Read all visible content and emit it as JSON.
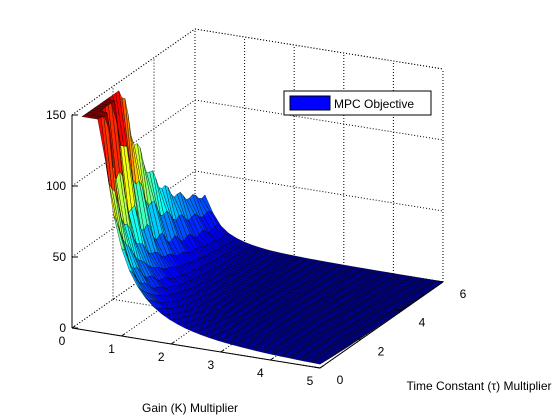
{
  "chart_data": {
    "type": "surface",
    "title": "",
    "xlabel": "Gain (K) Multiplier",
    "ylabel": "Time Constant (τ) Multiplier",
    "zlabel": "",
    "xlim": [
      0,
      5
    ],
    "ylim": [
      0,
      6
    ],
    "zlim": [
      0,
      150
    ],
    "x_ticks": [
      "0",
      "1",
      "2",
      "3",
      "4",
      "5"
    ],
    "y_ticks": [
      "0",
      "2",
      "4",
      "6"
    ],
    "z_ticks": [
      "0",
      "50",
      "100",
      "150"
    ],
    "grid": true,
    "legend": {
      "entries": [
        "MPC Objective"
      ],
      "placement": "top-right"
    },
    "colormap": "jet",
    "series": [
      {
        "name": "MPC Objective",
        "description_points": [
          {
            "K": 0.3,
            "tau": 0.3,
            "value": 150
          },
          {
            "K": 0.5,
            "tau": 0.5,
            "value": 140
          },
          {
            "K": 0.4,
            "tau": 1.0,
            "value": 100
          },
          {
            "K": 0.4,
            "tau": 1.5,
            "value": 75
          },
          {
            "K": 0.4,
            "tau": 2.5,
            "value": 50
          },
          {
            "K": 0.4,
            "tau": 4.0,
            "value": 28
          },
          {
            "K": 0.4,
            "tau": 6.0,
            "value": 12
          },
          {
            "K": 1.0,
            "tau": 0.5,
            "value": 70
          },
          {
            "K": 2.0,
            "tau": 0.5,
            "value": 25
          },
          {
            "K": 3.0,
            "tau": 1.0,
            "value": 6
          },
          {
            "K": 5.0,
            "tau": 6.0,
            "value": 1
          }
        ]
      }
    ],
    "colors": {
      "axis": "#000000",
      "grid": "#000000",
      "edge": "#000000",
      "legend_patch": "#0000ff"
    }
  }
}
